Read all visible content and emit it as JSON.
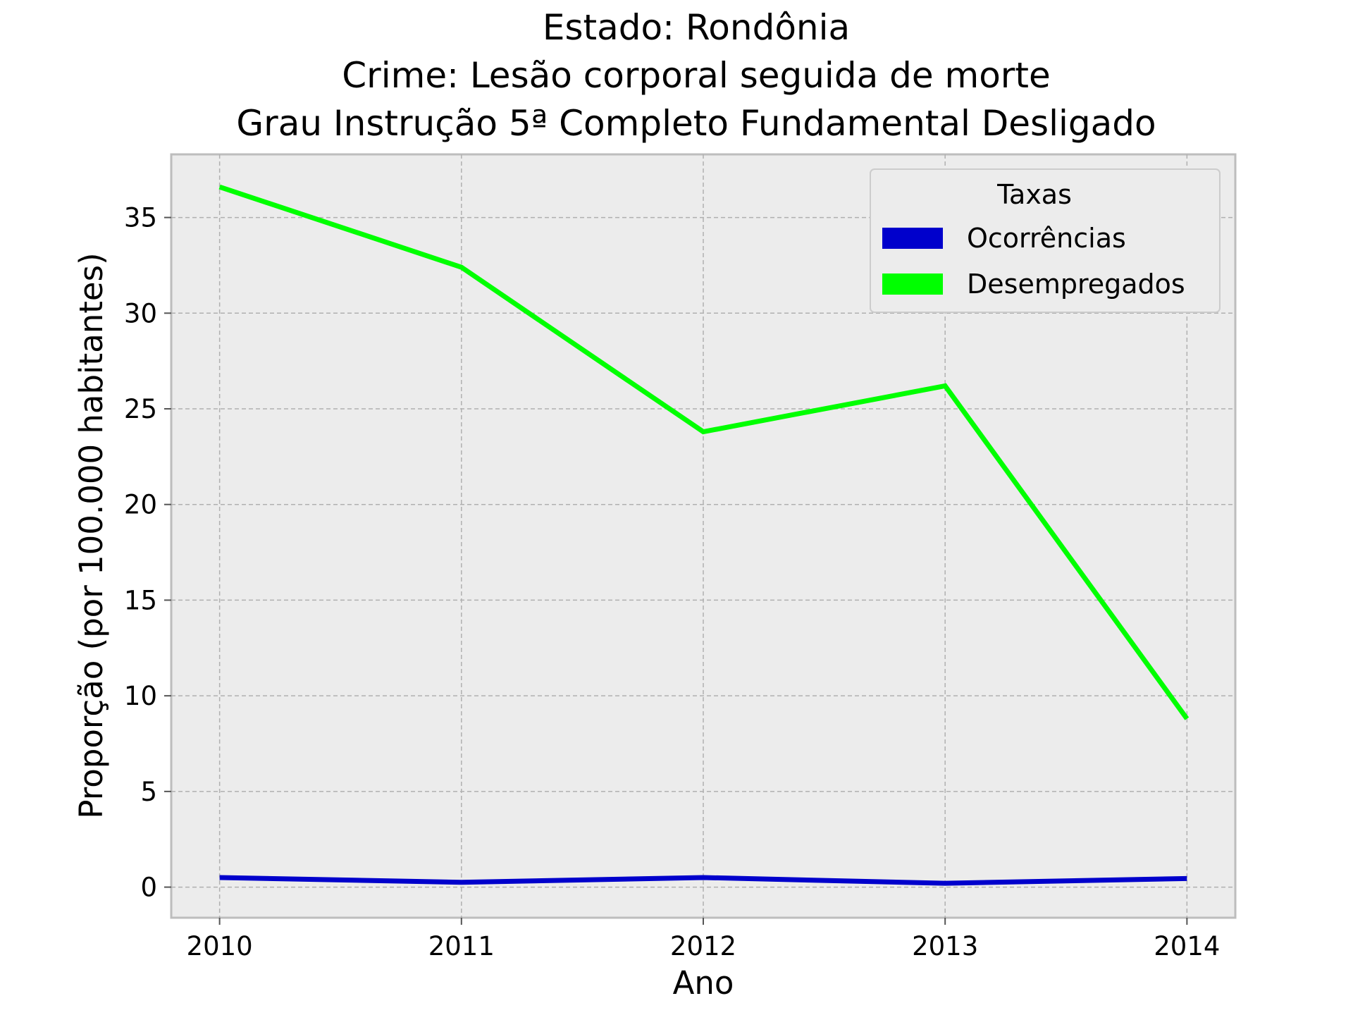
{
  "chart_data": {
    "type": "line",
    "title_lines": [
      "Estado: Rondônia",
      "Crime: Lesão corporal seguida de morte",
      "Grau Instrução  5ª Completo Fundamental   Desligado"
    ],
    "xlabel": "Ano",
    "ylabel": "Proporção (por 100.000 habitantes)",
    "x": [
      2010,
      2011,
      2012,
      2013,
      2014
    ],
    "x_tick_labels": [
      "2010",
      "2011",
      "2012",
      "2013",
      "2014"
    ],
    "y_ticks": [
      0,
      5,
      10,
      15,
      20,
      25,
      30,
      35
    ],
    "y_tick_labels": [
      "0",
      "5",
      "10",
      "15",
      "20",
      "25",
      "30",
      "35"
    ],
    "xlim": [
      2009.8,
      2014.2
    ],
    "ylim": [
      -1.6,
      38.3
    ],
    "grid": true,
    "legend": {
      "title": "Taxas",
      "placement": "top-right"
    },
    "series": [
      {
        "name": "Ocorrências",
        "color": "#0000cc",
        "values": [
          0.5,
          0.25,
          0.5,
          0.2,
          0.45
        ]
      },
      {
        "name": "Desempregados",
        "color": "#00ff00",
        "values": [
          36.6,
          32.4,
          23.8,
          26.2,
          8.8
        ]
      }
    ],
    "plot_background": "#ececec",
    "grid_color": "#b0b0b0"
  }
}
